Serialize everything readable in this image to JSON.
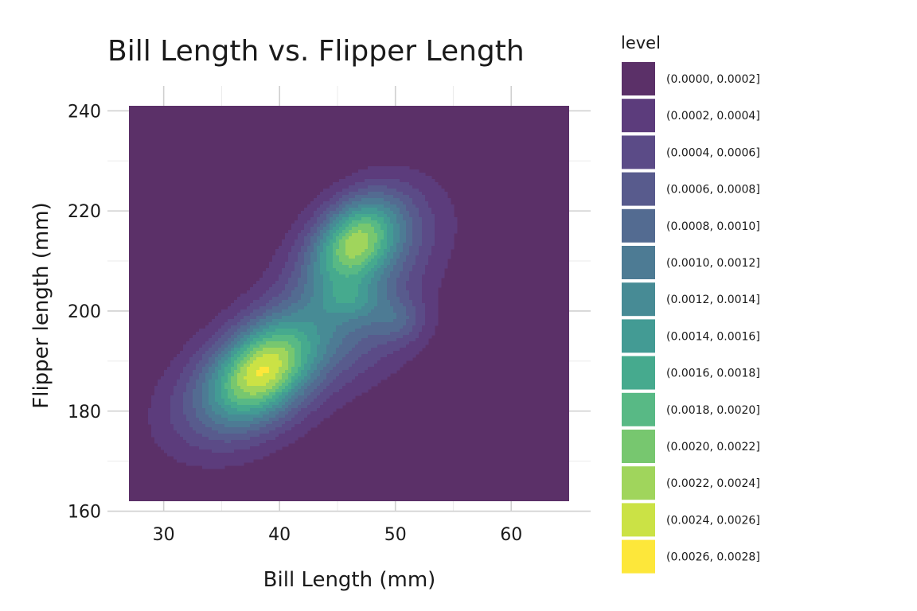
{
  "chart_data": {
    "type": "contour",
    "title": "Bill Length vs. Flipper Length",
    "xlabel": "Bill Length (mm)",
    "ylabel": "Flipper length (mm)",
    "xlim": [
      27,
      65
    ],
    "ylim": [
      162,
      241
    ],
    "x_ticks": [
      30,
      40,
      50,
      60
    ],
    "y_ticks": [
      160,
      180,
      200,
      220,
      240
    ],
    "grid": true,
    "legend_position": "right",
    "legend_title": "level",
    "levels": [
      {
        "label": "(0.0000, 0.0002]",
        "color": "#5b3068"
      },
      {
        "label": "(0.0002, 0.0004]",
        "color": "#5c3c7c"
      },
      {
        "label": "(0.0004, 0.0006]",
        "color": "#5b4b87"
      },
      {
        "label": "(0.0006, 0.0008]",
        "color": "#585b8d"
      },
      {
        "label": "(0.0008, 0.0010]",
        "color": "#536b91"
      },
      {
        "label": "(0.0010, 0.0012]",
        "color": "#4d7b94"
      },
      {
        "label": "(0.0012, 0.0014]",
        "color": "#478b95"
      },
      {
        "label": "(0.0014, 0.0016]",
        "color": "#439b94"
      },
      {
        "label": "(0.0016, 0.0018]",
        "color": "#46aa8e"
      },
      {
        "label": "(0.0018, 0.0020]",
        "color": "#58b985"
      },
      {
        "label": "(0.0020, 0.0022]",
        "color": "#77c76f"
      },
      {
        "label": "(0.0022, 0.0024]",
        "color": "#a0d55c"
      },
      {
        "label": "(0.0024, 0.0026]",
        "color": "#cbe245"
      },
      {
        "label": "(0.0026, 0.0028]",
        "color": "#fde73a"
      }
    ],
    "density_modes": [
      {
        "x": 38.8,
        "y": 188.5,
        "peak": 0.00275
      },
      {
        "x": 46.5,
        "y": 214.5,
        "peak": 0.00245
      },
      {
        "x": 50.3,
        "y": 198.2,
        "peak": 0.00105
      },
      {
        "x": 46.2,
        "y": 202.0,
        "peak": 0.00105
      }
    ],
    "contour_line_color": "#3b2896"
  }
}
